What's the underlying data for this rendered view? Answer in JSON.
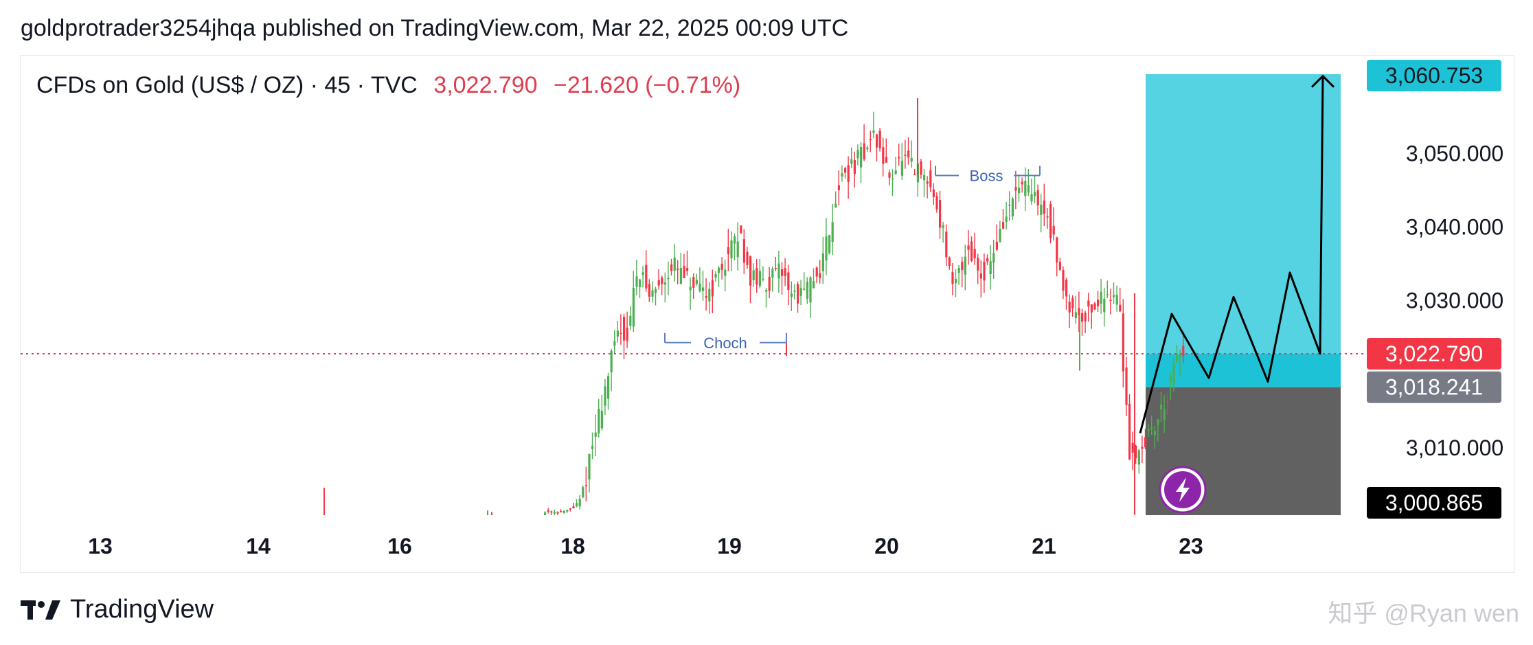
{
  "header": {
    "text": "goldprotrader3254jhqa published on TradingView.com, Mar 22, 2025 00:09 UTC"
  },
  "symbol": {
    "name": "CFDs on Gold (US$ / OZ) · 45 · TVC",
    "price": "3,022.790",
    "change": "−21.620 (−0.71%)"
  },
  "chart_data": {
    "type": "candlestick",
    "x_ticks": [
      "13",
      "14",
      "16",
      "18",
      "19",
      "20",
      "21",
      "23"
    ],
    "y_ticks": [
      "3,050.000",
      "3,040.000",
      "3,030.000",
      "3,010.000"
    ],
    "ylim": [
      3000.865,
      3061.5
    ],
    "current_price": 3022.79,
    "price_labels": [
      {
        "text": "3,060.753",
        "value": 3060.753,
        "color": "#1ec2d6",
        "text_color": "#131722"
      },
      {
        "text": "3,022.790",
        "value": 3022.79,
        "color": "#f23645",
        "text_color": "#ffffff"
      },
      {
        "text": "3,018.241",
        "value": 3018.241,
        "color": "#787b86",
        "text_color": "#ffffff"
      },
      {
        "text": "3,000.865",
        "value": 3000.865,
        "color": "#000000",
        "text_color": "#ffffff"
      }
    ],
    "annotations": [
      {
        "text": "Choch",
        "level": 3024.3
      },
      {
        "text": "Boss",
        "level": 3047.0
      }
    ],
    "position": {
      "target": 3060.753,
      "entry": 3018.241,
      "stop": 3000.865
    },
    "path_prices": [
      3012,
      3028.2,
      3019.5,
      3030.5,
      3019.0,
      3033.8,
      3022.8,
      3060.5
    ],
    "colors": {
      "up": "#4caf50",
      "down": "#f23645",
      "profit": "#56d3e2",
      "profit_strong": "#1ec2d6",
      "loss": "#616161"
    }
  },
  "footer": {
    "brand": "TradingView",
    "watermark": "知乎 @Ryan wen"
  }
}
